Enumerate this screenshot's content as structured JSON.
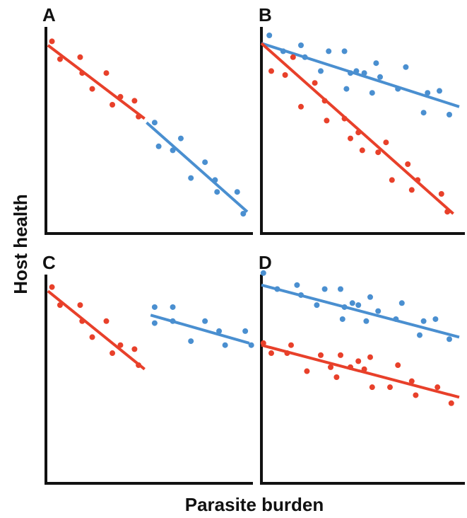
{
  "axis_labels": {
    "x": "Parasite burden",
    "y": "Host health"
  },
  "colors": {
    "red": "#e8402a",
    "blue": "#4a8fd0",
    "axis": "#111111"
  },
  "chart_data": [
    {
      "panel": "A",
      "type": "scatter",
      "xlim": [
        0,
        10
      ],
      "ylim": [
        0,
        10
      ],
      "series": [
        {
          "color": "red",
          "points": [
            [
              0.3,
              9.7
            ],
            [
              0.7,
              8.8
            ],
            [
              1.7,
              8.9
            ],
            [
              1.8,
              8.1
            ],
            [
              2.3,
              7.3
            ],
            [
              3.0,
              8.1
            ],
            [
              3.3,
              6.5
            ],
            [
              3.7,
              6.9
            ],
            [
              4.4,
              6.7
            ],
            [
              4.6,
              5.9
            ]
          ],
          "fit": [
            [
              0.1,
              9.5
            ],
            [
              4.9,
              5.8
            ]
          ]
        },
        {
          "color": "blue",
          "points": [
            [
              5.4,
              5.6
            ],
            [
              5.6,
              4.4
            ],
            [
              6.3,
              4.2
            ],
            [
              6.7,
              4.8
            ],
            [
              7.2,
              2.8
            ],
            [
              7.9,
              3.6
            ],
            [
              8.4,
              2.7
            ],
            [
              8.5,
              2.1
            ],
            [
              9.5,
              2.1
            ],
            [
              9.8,
              1.0
            ]
          ],
          "fit": [
            [
              5.0,
              5.6
            ],
            [
              10.0,
              1.1
            ]
          ]
        }
      ]
    },
    {
      "panel": "B",
      "type": "scatter",
      "xlim": [
        0,
        10
      ],
      "ylim": [
        0,
        10
      ],
      "series": [
        {
          "color": "blue",
          "points": [
            [
              0.4,
              10.0
            ],
            [
              1.1,
              9.2
            ],
            [
              2.0,
              9.5
            ],
            [
              2.2,
              8.9
            ],
            [
              3.0,
              8.2
            ],
            [
              3.4,
              9.2
            ],
            [
              4.2,
              9.2
            ],
            [
              4.3,
              7.3
            ],
            [
              4.5,
              8.1
            ],
            [
              4.8,
              8.2
            ],
            [
              5.2,
              8.1
            ],
            [
              5.6,
              7.1
            ],
            [
              5.8,
              8.6
            ],
            [
              6.0,
              7.9
            ],
            [
              6.9,
              7.3
            ],
            [
              7.3,
              8.4
            ],
            [
              8.2,
              6.1
            ],
            [
              8.4,
              7.1
            ],
            [
              9.0,
              7.2
            ],
            [
              9.5,
              6.0
            ]
          ],
          "fit": [
            [
              0.0,
              9.6
            ],
            [
              10.0,
              6.4
            ]
          ]
        },
        {
          "color": "red",
          "points": [
            [
              0.5,
              8.2
            ],
            [
              1.2,
              8.0
            ],
            [
              1.6,
              8.9
            ],
            [
              2.0,
              6.4
            ],
            [
              2.7,
              7.6
            ],
            [
              3.2,
              6.7
            ],
            [
              3.3,
              5.7
            ],
            [
              4.2,
              5.8
            ],
            [
              4.5,
              4.8
            ],
            [
              4.9,
              5.1
            ],
            [
              5.1,
              4.2
            ],
            [
              5.9,
              4.1
            ],
            [
              6.3,
              4.6
            ],
            [
              6.6,
              2.7
            ],
            [
              7.4,
              3.5
            ],
            [
              7.6,
              2.2
            ],
            [
              7.9,
              2.7
            ],
            [
              9.1,
              2.0
            ],
            [
              9.4,
              1.1
            ]
          ],
          "fit": [
            [
              0.0,
              9.6
            ],
            [
              9.7,
              1.0
            ]
          ]
        }
      ]
    },
    {
      "panel": "C",
      "type": "scatter",
      "xlim": [
        0,
        10
      ],
      "ylim": [
        0,
        10
      ],
      "series": [
        {
          "color": "red",
          "points": [
            [
              0.3,
              9.8
            ],
            [
              0.7,
              8.9
            ],
            [
              1.7,
              8.9
            ],
            [
              1.8,
              8.1
            ],
            [
              2.3,
              7.3
            ],
            [
              3.0,
              8.1
            ],
            [
              3.3,
              6.5
            ],
            [
              3.7,
              6.9
            ],
            [
              4.4,
              6.7
            ],
            [
              4.6,
              5.9
            ]
          ],
          "fit": [
            [
              0.1,
              9.6
            ],
            [
              4.9,
              5.7
            ]
          ]
        },
        {
          "color": "blue",
          "points": [
            [
              5.4,
              8.8
            ],
            [
              5.4,
              8.0
            ],
            [
              6.3,
              8.8
            ],
            [
              6.3,
              8.1
            ],
            [
              7.2,
              7.1
            ],
            [
              7.9,
              8.1
            ],
            [
              8.6,
              7.6
            ],
            [
              8.9,
              6.9
            ],
            [
              9.9,
              7.6
            ],
            [
              10.2,
              6.9
            ]
          ],
          "fit": [
            [
              5.2,
              8.4
            ],
            [
              10.1,
              7.0
            ]
          ]
        }
      ]
    },
    {
      "panel": "D",
      "type": "scatter",
      "xlim": [
        0,
        10
      ],
      "ylim": [
        0,
        10
      ],
      "series": [
        {
          "color": "blue",
          "points": [
            [
              0.1,
              10.5
            ],
            [
              0.8,
              9.7
            ],
            [
              1.8,
              9.9
            ],
            [
              2.0,
              9.4
            ],
            [
              2.8,
              8.9
            ],
            [
              3.2,
              9.7
            ],
            [
              4.0,
              9.7
            ],
            [
              4.1,
              8.2
            ],
            [
              4.2,
              8.8
            ],
            [
              4.6,
              9.0
            ],
            [
              4.9,
              8.9
            ],
            [
              5.3,
              8.1
            ],
            [
              5.5,
              9.3
            ],
            [
              5.9,
              8.6
            ],
            [
              6.8,
              8.2
            ],
            [
              7.1,
              9.0
            ],
            [
              8.0,
              7.4
            ],
            [
              8.2,
              8.1
            ],
            [
              8.8,
              8.2
            ],
            [
              9.5,
              7.2
            ]
          ],
          "fit": [
            [
              0.0,
              9.9
            ],
            [
              10.0,
              7.3
            ]
          ]
        },
        {
          "color": "red",
          "points": [
            [
              0.1,
              7.0
            ],
            [
              0.5,
              6.5
            ],
            [
              1.3,
              6.5
            ],
            [
              1.5,
              6.9
            ],
            [
              2.3,
              5.6
            ],
            [
              3.0,
              6.4
            ],
            [
              3.5,
              5.8
            ],
            [
              3.8,
              5.3
            ],
            [
              4.0,
              6.4
            ],
            [
              4.5,
              5.8
            ],
            [
              4.9,
              6.1
            ],
            [
              5.2,
              5.7
            ],
            [
              5.5,
              6.3
            ],
            [
              5.6,
              4.8
            ],
            [
              6.5,
              4.8
            ],
            [
              6.9,
              5.9
            ],
            [
              7.6,
              5.1
            ],
            [
              7.8,
              4.4
            ],
            [
              8.9,
              4.8
            ],
            [
              9.6,
              4.0
            ]
          ],
          "fit": [
            [
              0.0,
              6.9
            ],
            [
              10.0,
              4.3
            ]
          ]
        }
      ]
    }
  ]
}
